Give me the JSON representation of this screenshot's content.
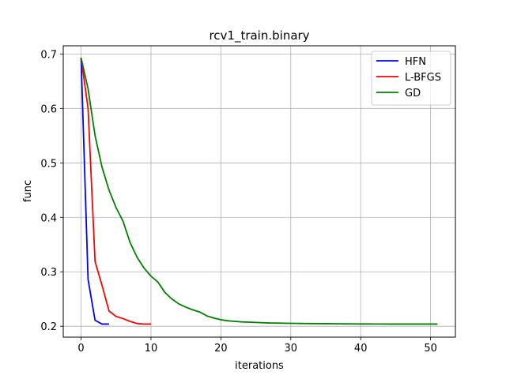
{
  "chart_data": {
    "type": "line",
    "title": "rcv1_train.binary",
    "xlabel": "iterations",
    "ylabel": "func",
    "xlim": [
      -2.55,
      53.55
    ],
    "ylim": [
      0.18,
      0.715
    ],
    "xticks": [
      0,
      10,
      20,
      30,
      40,
      50
    ],
    "yticks": [
      0.2,
      0.3,
      0.4,
      0.5,
      0.6,
      0.7
    ],
    "xtick_labels": [
      "0",
      "10",
      "20",
      "30",
      "40",
      "50"
    ],
    "ytick_labels": [
      "0.2",
      "0.3",
      "0.4",
      "0.5",
      "0.6",
      "0.7"
    ],
    "grid": true,
    "legend_position": "top-right",
    "series": [
      {
        "name": "HFN",
        "color": "#0000ff",
        "x": [
          0,
          1,
          2,
          3,
          4
        ],
        "y": [
          0.693,
          0.286,
          0.211,
          0.204,
          0.204
        ]
      },
      {
        "name": "L-BFGS",
        "color": "#ff0000",
        "x": [
          0,
          1,
          2,
          3,
          4,
          5,
          6,
          7,
          8,
          9,
          10
        ],
        "y": [
          0.693,
          0.6,
          0.319,
          0.275,
          0.228,
          0.218,
          0.214,
          0.209,
          0.205,
          0.204,
          0.204
        ]
      },
      {
        "name": "GD",
        "color": "#008000",
        "x": [
          0,
          1,
          2,
          3,
          4,
          5,
          6,
          7,
          8,
          9,
          10,
          11,
          12,
          13,
          14,
          15,
          16,
          17,
          18,
          19,
          20,
          21,
          22,
          23,
          24,
          25,
          26,
          27,
          28,
          29,
          30,
          31,
          32,
          33,
          34,
          35,
          36,
          37,
          38,
          39,
          40,
          41,
          42,
          43,
          44,
          45,
          46,
          47,
          48,
          49,
          50,
          51
        ],
        "y": [
          0.693,
          0.636,
          0.55,
          0.492,
          0.45,
          0.418,
          0.393,
          0.354,
          0.327,
          0.307,
          0.292,
          0.281,
          0.262,
          0.25,
          0.241,
          0.235,
          0.23,
          0.226,
          0.219,
          0.215,
          0.212,
          0.21,
          0.209,
          0.208,
          0.2075,
          0.207,
          0.2065,
          0.206,
          0.2058,
          0.2056,
          0.2054,
          0.2052,
          0.205,
          0.2049,
          0.2048,
          0.2047,
          0.2046,
          0.2045,
          0.2044,
          0.2043,
          0.2042,
          0.2042,
          0.2041,
          0.2041,
          0.204,
          0.204,
          0.204,
          0.204,
          0.204,
          0.204,
          0.204,
          0.204
        ]
      }
    ]
  }
}
